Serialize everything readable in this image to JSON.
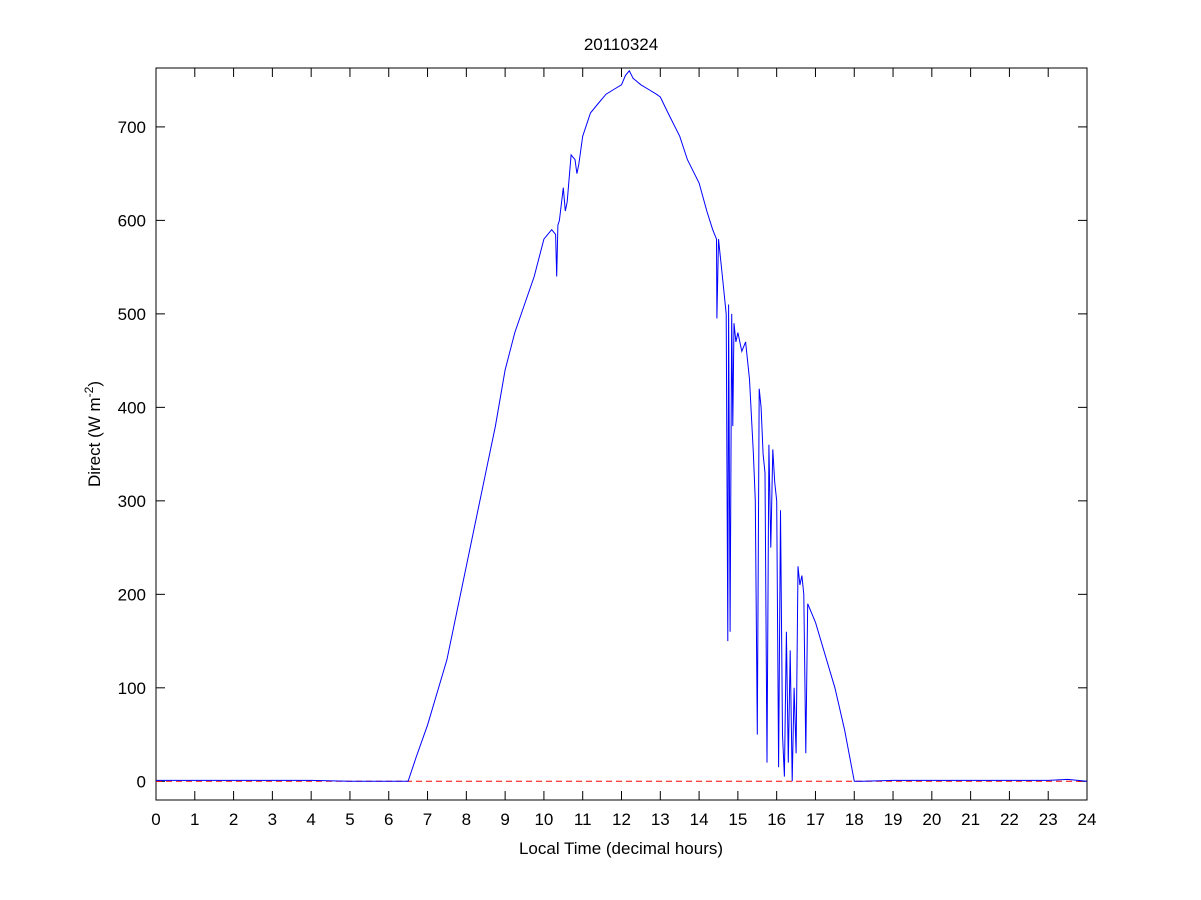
{
  "chart_data": {
    "type": "line",
    "title": "20110324",
    "xlabel": "Local Time (decimal hours)",
    "ylabel": "Direct (W m",
    "ylabel_sup": "-2",
    "ylabel_end": ")",
    "xlim": [
      0,
      24
    ],
    "ylim": [
      -20,
      763
    ],
    "xticks": [
      0,
      1,
      2,
      3,
      4,
      5,
      6,
      7,
      8,
      9,
      10,
      11,
      12,
      13,
      14,
      15,
      16,
      17,
      18,
      19,
      20,
      21,
      22,
      23,
      24
    ],
    "yticks": [
      0,
      100,
      200,
      300,
      400,
      500,
      600,
      700
    ],
    "grid": false,
    "colors": {
      "series": "#0000ff",
      "reference": "#ff0000"
    },
    "series": [
      {
        "x": [
          0,
          1,
          2,
          3,
          4,
          5,
          5.5,
          6,
          6.5,
          6.7,
          7,
          7.25,
          7.5,
          7.75,
          8,
          8.25,
          8.5,
          8.75,
          9,
          9.25,
          9.5,
          9.75,
          10,
          10.2,
          10.3,
          10.33,
          10.36,
          10.4,
          10.5,
          10.55,
          10.6,
          10.7,
          10.8,
          10.85,
          10.9,
          11,
          11.2,
          11.4,
          11.6,
          11.8,
          12,
          12.1,
          12.2,
          12.3,
          12.5,
          12.7,
          12.9,
          13,
          13.2,
          13.5,
          13.7,
          14,
          14.2,
          14.35,
          14.45,
          14.46,
          14.5,
          14.6,
          14.7,
          14.74,
          14.76,
          14.8,
          14.84,
          14.87,
          14.9,
          14.95,
          15,
          15.1,
          15.2,
          15.3,
          15.4,
          15.45,
          15.5,
          15.55,
          15.6,
          15.65,
          15.7,
          15.75,
          15.8,
          15.85,
          15.9,
          15.95,
          16,
          16.05,
          16.1,
          16.15,
          16.2,
          16.25,
          16.3,
          16.35,
          16.4,
          16.45,
          16.5,
          16.55,
          16.6,
          16.65,
          16.7,
          16.75,
          16.8,
          17,
          17.25,
          17.5,
          17.75,
          18,
          18.2,
          19,
          20,
          21,
          22,
          23,
          23.5,
          24
        ],
        "y": [
          1,
          1,
          1,
          1,
          1,
          0,
          0,
          0,
          0,
          25,
          60,
          95,
          130,
          180,
          230,
          280,
          330,
          380,
          440,
          480,
          510,
          540,
          580,
          590,
          585,
          540,
          595,
          600,
          635,
          610,
          620,
          670,
          665,
          650,
          660,
          690,
          715,
          725,
          735,
          740,
          745,
          755,
          760,
          752,
          745,
          740,
          735,
          732,
          715,
          690,
          665,
          640,
          610,
          590,
          580,
          495,
          580,
          540,
          500,
          150,
          510,
          160,
          500,
          380,
          490,
          470,
          480,
          460,
          470,
          430,
          350,
          300,
          50,
          420,
          400,
          350,
          330,
          20,
          360,
          250,
          355,
          320,
          300,
          15,
          290,
          50,
          5,
          160,
          20,
          140,
          0,
          100,
          30,
          230,
          210,
          220,
          200,
          30,
          190,
          170,
          135,
          100,
          55,
          0,
          0,
          1,
          1,
          1,
          1,
          1,
          2,
          0
        ]
      }
    ],
    "reference_line": {
      "y": 0,
      "style": "dashed"
    }
  }
}
